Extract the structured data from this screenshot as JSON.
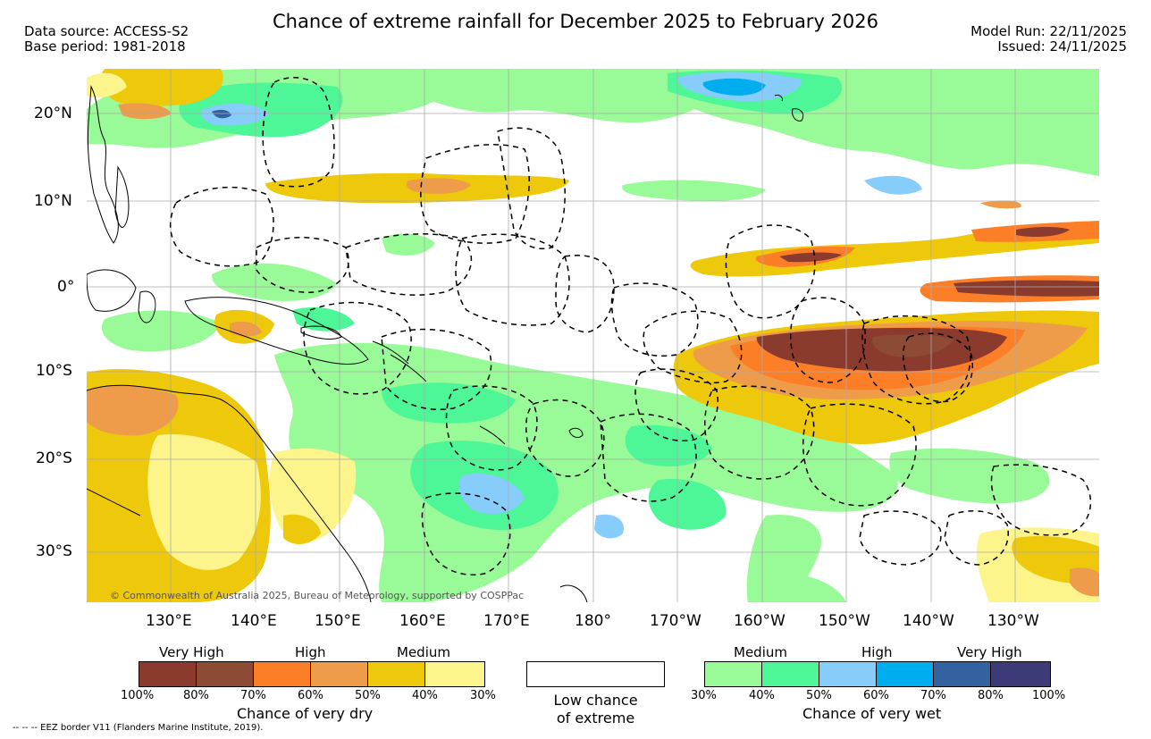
{
  "title": "Chance of extreme rainfall for December 2025 to February 2026",
  "header_left": {
    "data_source": "Data source: ACCESS-S2",
    "base_period": "Base period: 1981-2018"
  },
  "header_right": {
    "model_run": "Model Run: 22/11/2025",
    "issued": "Issued: 24/11/2025"
  },
  "map": {
    "lat_labels": [
      "20°N",
      "10°N",
      "0°",
      "10°S",
      "20°S",
      "30°S"
    ],
    "lon_labels": [
      "130°E",
      "140°E",
      "150°E",
      "160°E",
      "170°E",
      "180°",
      "170°W",
      "160°W",
      "150°W",
      "140°W",
      "130°W"
    ],
    "copyright": "© Commonwealth of Australia 2025, Bureau of Meteorology, supported by COSPPac",
    "colors": {
      "land_outline": "#000000",
      "eez_border": "#000000",
      "gridline": "#aaaaaa"
    }
  },
  "legend_dry": {
    "categories": [
      "Very High",
      "High",
      "Medium"
    ],
    "colors": [
      "#8b3a2e",
      "#8d4b35",
      "#fc7f28",
      "#ee9c4a",
      "#eec80a",
      "#fdf48b"
    ],
    "ticks": [
      "100%",
      "80%",
      "70%",
      "60%",
      "50%",
      "40%",
      "30%"
    ],
    "caption": "Chance of very dry"
  },
  "legend_low": {
    "line1": "Low chance",
    "line2": "of extreme",
    "color": "#ffffff"
  },
  "legend_wet": {
    "categories": [
      "Medium",
      "High",
      "Very High"
    ],
    "colors": [
      "#99fb98",
      "#4df696",
      "#87cdfb",
      "#00aeef",
      "#34619f",
      "#3d3a78"
    ],
    "ticks": [
      "30%",
      "40%",
      "50%",
      "60%",
      "70%",
      "80%",
      "100%"
    ],
    "caption": "Chance of very wet"
  },
  "eez_note": "-- -- -- EEZ border V11 (Flanders Marine Institute, 2019)."
}
